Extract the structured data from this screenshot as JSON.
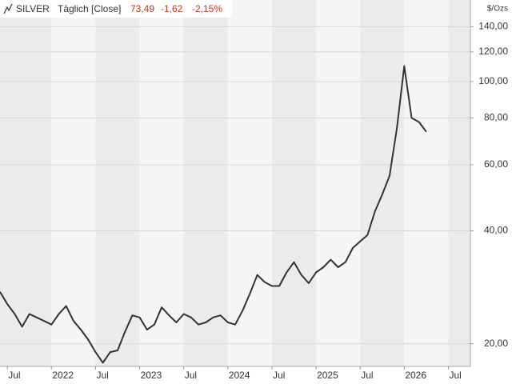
{
  "chart_data": {
    "type": "line",
    "title": "SILVER",
    "subtitle": "Täglich [Close]",
    "last": "73,49",
    "change": "-1,62",
    "change_pct": "-2,15%",
    "y_unit": "$/Ozs",
    "log_scale": true,
    "grid": true,
    "x": [
      "2021-06",
      "2021-07",
      "2021-08",
      "2021-09",
      "2021-10",
      "2021-11",
      "2021-12",
      "2022-01",
      "2022-02",
      "2022-03",
      "2022-04",
      "2022-05",
      "2022-06",
      "2022-07",
      "2022-08",
      "2022-09",
      "2022-10",
      "2022-11",
      "2022-12",
      "2023-01",
      "2023-02",
      "2023-03",
      "2023-04",
      "2023-05",
      "2023-06",
      "2023-07",
      "2023-08",
      "2023-09",
      "2023-10",
      "2023-11",
      "2023-12",
      "2024-01",
      "2024-02",
      "2024-03",
      "2024-04",
      "2024-05",
      "2024-06",
      "2024-07",
      "2024-08",
      "2024-09",
      "2024-10",
      "2024-11",
      "2024-12",
      "2025-01",
      "2025-02",
      "2025-03",
      "2025-04",
      "2025-05",
      "2025-06",
      "2025-07",
      "2025-08",
      "2025-09",
      "2025-10",
      "2025-11",
      "2025-12",
      "2026-01",
      "2026-02",
      "2026-03",
      "2026-04"
    ],
    "series": [
      {
        "name": "SILVER",
        "color": "#333333",
        "values": [
          27.5,
          25.5,
          24.0,
          22.2,
          24.0,
          23.5,
          23.0,
          22.5,
          24.0,
          25.2,
          23.0,
          21.8,
          20.5,
          19.0,
          17.8,
          19.0,
          19.2,
          21.5,
          23.8,
          23.5,
          21.8,
          22.5,
          25.0,
          23.8,
          22.8,
          24.0,
          23.5,
          22.5,
          22.8,
          23.5,
          23.8,
          22.8,
          22.5,
          24.5,
          27.2,
          30.5,
          29.2,
          28.5,
          28.5,
          31.0,
          33.0,
          30.5,
          29.0,
          31.0,
          32.0,
          33.5,
          32.0,
          33.0,
          36.0,
          37.5,
          39.0,
          45.0,
          50.0,
          56.0,
          75.0,
          110.0,
          80.0,
          78.0,
          73.49
        ]
      }
    ],
    "xlim": [
      "2021-06",
      "2026-10"
    ],
    "xticks": [
      {
        "value": "2021-07",
        "label": "Jul"
      },
      {
        "value": "2022-01",
        "label": "2022"
      },
      {
        "value": "2022-07",
        "label": "Jul"
      },
      {
        "value": "2023-01",
        "label": "2023"
      },
      {
        "value": "2023-07",
        "label": "Jul"
      },
      {
        "value": "2024-01",
        "label": "2024"
      },
      {
        "value": "2024-07",
        "label": "Jul"
      },
      {
        "value": "2025-01",
        "label": "2025"
      },
      {
        "value": "2025-07",
        "label": "Jul"
      },
      {
        "value": "2026-01",
        "label": "2026"
      },
      {
        "value": "2026-07",
        "label": "Jul"
      }
    ],
    "ylim": [
      17.4,
      165
    ],
    "yticks": [
      {
        "value": 20,
        "label": "20,00"
      },
      {
        "value": 40,
        "label": "40,00"
      },
      {
        "value": 60,
        "label": "60,00"
      },
      {
        "value": 80,
        "label": "80,00"
      },
      {
        "value": 100,
        "label": "100,00"
      },
      {
        "value": 120,
        "label": "120,00"
      },
      {
        "value": 140,
        "label": "140,00"
      }
    ]
  }
}
